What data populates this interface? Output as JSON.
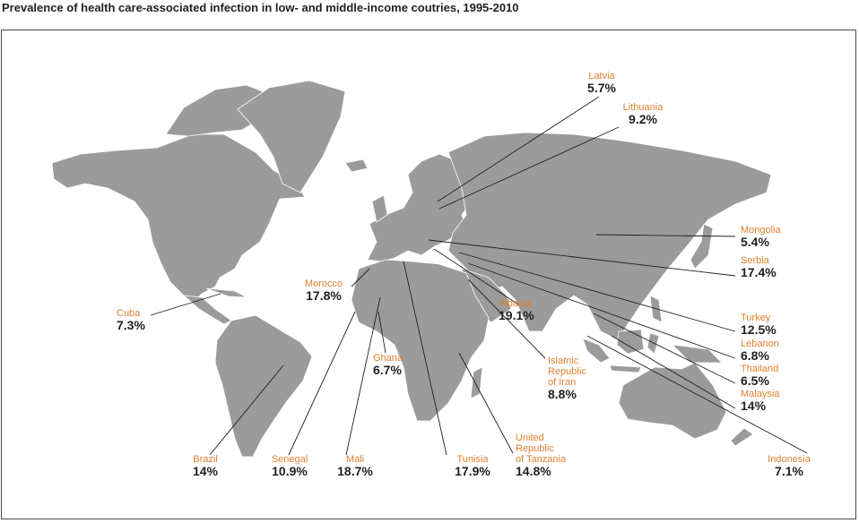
{
  "title": "Prevalence of health care-associated infection in low- and middle-income coutries, 1995-2010",
  "colors": {
    "land": "#9b9b9b",
    "label": "#e07f2e",
    "value": "#231f20"
  },
  "countries": [
    {
      "id": "latvia",
      "name": "Latvia",
      "value": "5.7%"
    },
    {
      "id": "lithuania",
      "name": "Lithuania",
      "value": "9.2%"
    },
    {
      "id": "mongolia",
      "name": "Mongolia",
      "value": "5.4%"
    },
    {
      "id": "serbia",
      "name": "Serbia",
      "value": "17.4%"
    },
    {
      "id": "turkey",
      "name": "Turkey",
      "value": "12.5%"
    },
    {
      "id": "lebanon",
      "name": "Lebanon",
      "value": "6.8%"
    },
    {
      "id": "thailand",
      "name": "Thailand",
      "value": "6.5%"
    },
    {
      "id": "malaysia",
      "name": "Malaysia",
      "value": "14%"
    },
    {
      "id": "indonesia",
      "name": "Indonesia",
      "value": "7.1%"
    },
    {
      "id": "iran",
      "name": "Islamic Republic of Iran",
      "name_lines": [
        "Islamic",
        "Republic",
        "of Iran"
      ],
      "value": "8.8%"
    },
    {
      "id": "albania",
      "name": "Albania",
      "value": "19.1%"
    },
    {
      "id": "morocco",
      "name": "Morocco",
      "value": "17.8%"
    },
    {
      "id": "cuba",
      "name": "Cuba",
      "value": "7.3%"
    },
    {
      "id": "ghana",
      "name": "Ghana",
      "value": "6.7%"
    },
    {
      "id": "brazil",
      "name": "Brazil",
      "value": "14%"
    },
    {
      "id": "senegal",
      "name": "Senegal",
      "value": "10.9%"
    },
    {
      "id": "mali",
      "name": "Mali",
      "value": "18.7%"
    },
    {
      "id": "tunisia",
      "name": "Tunisia",
      "value": "17.9%"
    },
    {
      "id": "tanzania",
      "name": "United Republic of Tanzania",
      "name_lines": [
        "United",
        "Republic",
        "of Tanzania"
      ],
      "value": "14.8%"
    }
  ]
}
